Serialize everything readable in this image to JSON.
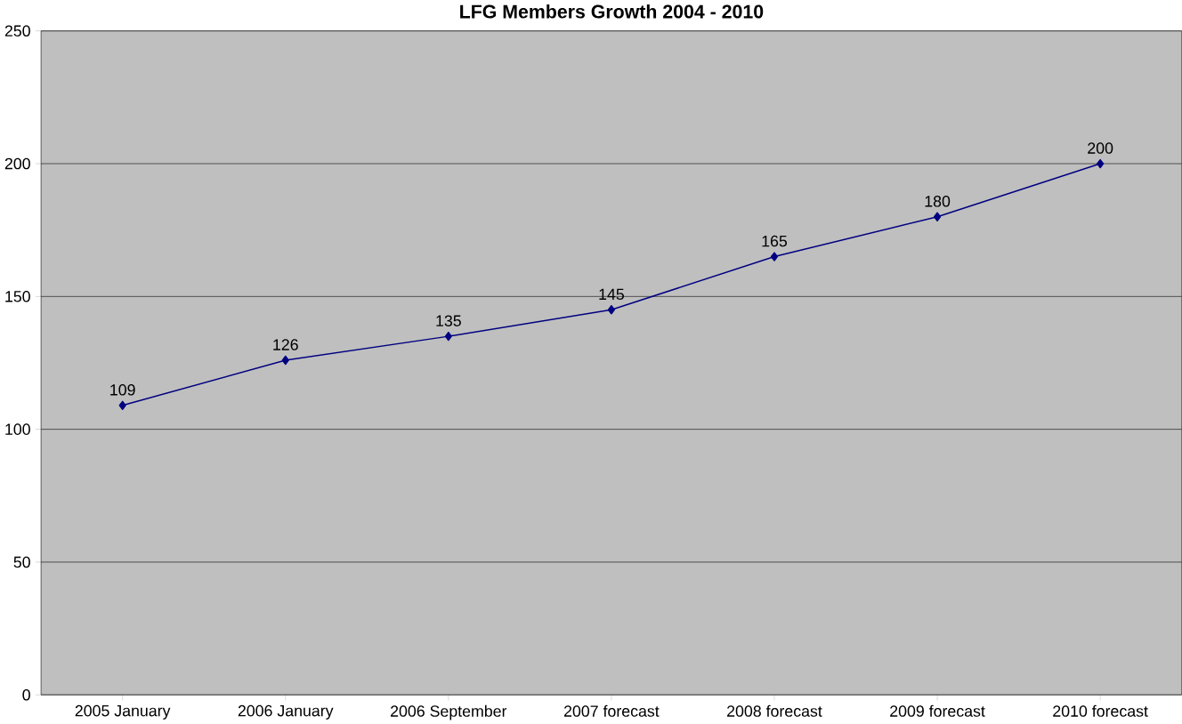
{
  "chart_data": {
    "type": "line",
    "title": "LFG Members Growth 2004 - 2010",
    "categories": [
      "2005 January",
      "2006 January",
      "2006 September",
      "2007 forecast",
      "2008 forecast",
      "2009 forecast",
      "2010 forecast"
    ],
    "series": [
      {
        "color": "#000080",
        "values": [
          109,
          126,
          135,
          145,
          165,
          180,
          200
        ]
      }
    ],
    "ylim": [
      0,
      250
    ],
    "yticks": [
      0,
      50,
      100,
      150,
      200,
      250
    ],
    "grid": "y",
    "marker": "diamond",
    "line_style": "solid",
    "data_labels": true
  }
}
